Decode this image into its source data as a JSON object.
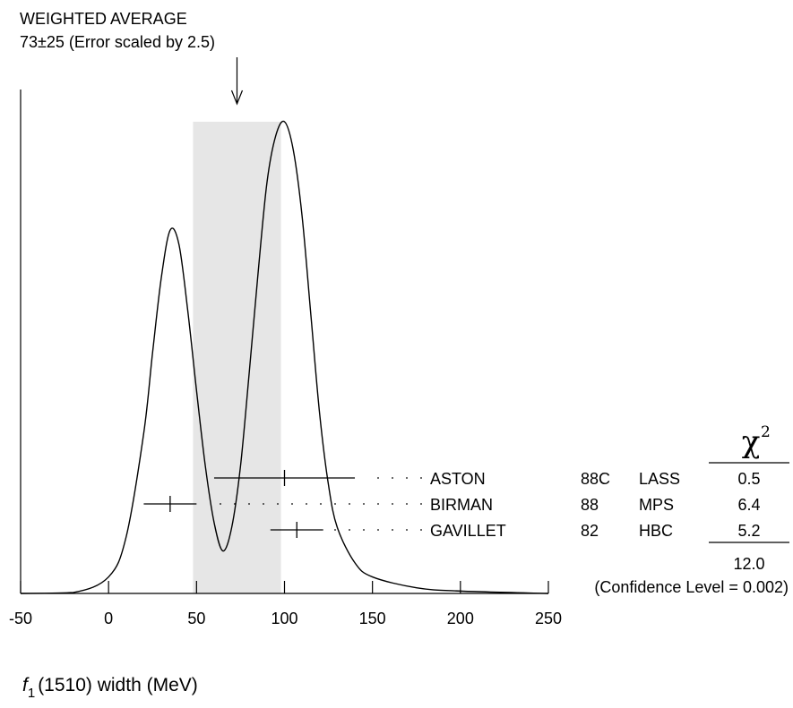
{
  "chart_data": {
    "type": "line",
    "header": {
      "title": "WEIGHTED AVERAGE",
      "subtitle": "73±25 (Error scaled by 2.5)"
    },
    "weighted_average": {
      "value": 73,
      "error": 25,
      "scale_factor": 2.5
    },
    "xlabel": {
      "symbol": "f",
      "subscript": "1",
      "rest": "(1510) width (MeV)"
    },
    "xlim": [
      -50,
      250
    ],
    "x_ticks": [
      -50,
      0,
      50,
      100,
      150,
      200,
      250
    ],
    "x_tick_labels": [
      "-50",
      "0",
      "50",
      "100",
      "150",
      "200",
      "250"
    ],
    "band": [
      48,
      98
    ],
    "ideogram": {
      "x": [
        -50,
        -20,
        0,
        10,
        20,
        25,
        30,
        35,
        40,
        45,
        50,
        55,
        60,
        65,
        70,
        75,
        80,
        85,
        90,
        95,
        100,
        105,
        110,
        115,
        120,
        125,
        130,
        140,
        150,
        175,
        200,
        250
      ],
      "y": [
        0.0,
        0.002,
        0.035,
        0.12,
        0.34,
        0.51,
        0.67,
        0.77,
        0.74,
        0.6,
        0.43,
        0.27,
        0.15,
        0.09,
        0.14,
        0.27,
        0.47,
        0.68,
        0.87,
        0.97,
        1.0,
        0.94,
        0.8,
        0.59,
        0.38,
        0.23,
        0.14,
        0.065,
        0.035,
        0.012,
        0.005,
        0.0
      ]
    },
    "measurements": [
      {
        "value": 100,
        "lower": 60,
        "upper": 140,
        "name": "ASTON",
        "year": "88C",
        "experiment": "LASS",
        "chi2": "0.5"
      },
      {
        "value": 35,
        "lower": 20,
        "upper": 50,
        "name": "BIRMAN",
        "year": "88",
        "experiment": "MPS",
        "chi2": "6.4"
      },
      {
        "value": 107,
        "lower": 92,
        "upper": 122,
        "name": "GAVILLET",
        "year": "82",
        "experiment": "HBC",
        "chi2": "5.2"
      }
    ],
    "chi2_header": "χ",
    "chi2_header_power": "2",
    "chi2_total": "12.0",
    "confidence_level": "(Confidence Level = 0.002)"
  }
}
